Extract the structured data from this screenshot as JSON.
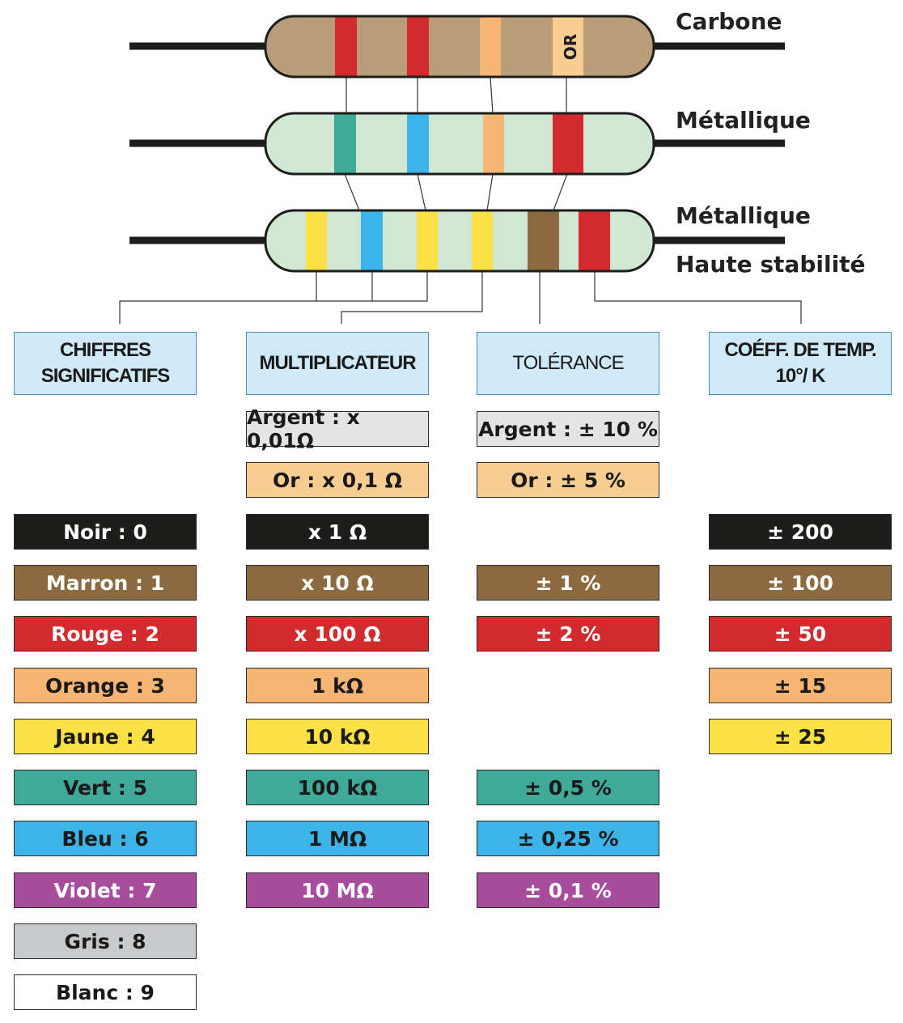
{
  "labels": {
    "carbone": "Carbone",
    "metallique1": "Métallique",
    "metallique2": "Métallique",
    "haute": "Haute stabilité",
    "or_mark": "OR"
  },
  "colors": {
    "noir": "#1d1d1b",
    "marron": "#8c6a3f",
    "rouge": "#d32a2e",
    "orange": "#f5b674",
    "jaune": "#fbe146",
    "vert": "#3fa99a",
    "bleu": "#3cb4e8",
    "violet": "#a84c9d",
    "gris": "#c8c9cb",
    "blanc": "#ffffff",
    "argent": "#e4e4e4",
    "or": "#f8cd92",
    "carbon_body": "#b99c79",
    "metal_body": "#cfe7d3",
    "header_bg": "#cfe9f7"
  },
  "resistors": [
    {
      "name": "carbone",
      "bands": [
        "rouge",
        "rouge",
        "orange",
        "or"
      ]
    },
    {
      "name": "metallique",
      "bands": [
        "vert",
        "bleu",
        "orange",
        "rouge"
      ]
    },
    {
      "name": "metallique-haute-stabilite",
      "bands": [
        "jaune",
        "bleu",
        "jaune",
        "jaune",
        "marron",
        "rouge"
      ]
    }
  ],
  "headers": {
    "chiffres": "CHIFFRES\nSIGNIFICATIFS",
    "multiplicateur": "MULTIPLICATEUR",
    "tolerance": "TOLÉRANCE",
    "coeff": "COÉFF. DE TEMP.\n10°/ K"
  },
  "rows": [
    {
      "row": 0,
      "col": "multiplicateur",
      "color": "argent",
      "text": "Argent : x 0,01Ω",
      "text_color": "#1a1a1a"
    },
    {
      "row": 0,
      "col": "tolerance",
      "color": "argent",
      "text": "Argent : ± 10 %",
      "text_color": "#1a1a1a"
    },
    {
      "row": 1,
      "col": "multiplicateur",
      "color": "or",
      "text": "Or : x 0,1 Ω",
      "text_color": "#1a1a1a"
    },
    {
      "row": 1,
      "col": "tolerance",
      "color": "or",
      "text": "Or : ± 5 %",
      "text_color": "#1a1a1a"
    },
    {
      "row": 2,
      "col": "chiffres",
      "color": "noir",
      "text": "Noir : 0",
      "text_color": "#ffffff"
    },
    {
      "row": 2,
      "col": "multiplicateur",
      "color": "noir",
      "text": "x 1 Ω",
      "text_color": "#ffffff"
    },
    {
      "row": 2,
      "col": "coeff",
      "color": "noir",
      "text": "± 200",
      "text_color": "#ffffff"
    },
    {
      "row": 3,
      "col": "chiffres",
      "color": "marron",
      "text": "Marron : 1",
      "text_color": "#ffffff"
    },
    {
      "row": 3,
      "col": "multiplicateur",
      "color": "marron",
      "text": "x 10 Ω",
      "text_color": "#ffffff"
    },
    {
      "row": 3,
      "col": "tolerance",
      "color": "marron",
      "text": "± 1 %",
      "text_color": "#ffffff"
    },
    {
      "row": 3,
      "col": "coeff",
      "color": "marron",
      "text": "± 100",
      "text_color": "#ffffff"
    },
    {
      "row": 4,
      "col": "chiffres",
      "color": "rouge",
      "text": "Rouge : 2",
      "text_color": "#ffffff"
    },
    {
      "row": 4,
      "col": "multiplicateur",
      "color": "rouge",
      "text": "x 100 Ω",
      "text_color": "#ffffff"
    },
    {
      "row": 4,
      "col": "tolerance",
      "color": "rouge",
      "text": "± 2 %",
      "text_color": "#ffffff"
    },
    {
      "row": 4,
      "col": "coeff",
      "color": "rouge",
      "text": "± 50",
      "text_color": "#ffffff"
    },
    {
      "row": 5,
      "col": "chiffres",
      "color": "orange",
      "text": "Orange : 3",
      "text_color": "#1a1a1a"
    },
    {
      "row": 5,
      "col": "multiplicateur",
      "color": "orange",
      "text": "1 kΩ",
      "text_color": "#1a1a1a"
    },
    {
      "row": 5,
      "col": "coeff",
      "color": "orange",
      "text": "± 15",
      "text_color": "#1a1a1a"
    },
    {
      "row": 6,
      "col": "chiffres",
      "color": "jaune",
      "text": "Jaune : 4",
      "text_color": "#1a1a1a"
    },
    {
      "row": 6,
      "col": "multiplicateur",
      "color": "jaune",
      "text": "10 kΩ",
      "text_color": "#1a1a1a"
    },
    {
      "row": 6,
      "col": "coeff",
      "color": "jaune",
      "text": "± 25",
      "text_color": "#1a1a1a"
    },
    {
      "row": 7,
      "col": "chiffres",
      "color": "vert",
      "text": "Vert : 5",
      "text_color": "#1a1a1a"
    },
    {
      "row": 7,
      "col": "multiplicateur",
      "color": "vert",
      "text": "100 kΩ",
      "text_color": "#1a1a1a"
    },
    {
      "row": 7,
      "col": "tolerance",
      "color": "vert",
      "text": "± 0,5 %",
      "text_color": "#1a1a1a"
    },
    {
      "row": 8,
      "col": "chiffres",
      "color": "bleu",
      "text": "Bleu : 6",
      "text_color": "#1a1a1a"
    },
    {
      "row": 8,
      "col": "multiplicateur",
      "color": "bleu",
      "text": "1 MΩ",
      "text_color": "#1a1a1a"
    },
    {
      "row": 8,
      "col": "tolerance",
      "color": "bleu",
      "text": "± 0,25 %",
      "text_color": "#1a1a1a"
    },
    {
      "row": 9,
      "col": "chiffres",
      "color": "violet",
      "text": "Violet : 7",
      "text_color": "#ffffff"
    },
    {
      "row": 9,
      "col": "multiplicateur",
      "color": "violet",
      "text": "10 MΩ",
      "text_color": "#ffffff"
    },
    {
      "row": 9,
      "col": "tolerance",
      "color": "violet",
      "text": "± 0,1 %",
      "text_color": "#ffffff"
    },
    {
      "row": 10,
      "col": "chiffres",
      "color": "gris",
      "text": "Gris : 8",
      "text_color": "#1a1a1a"
    },
    {
      "row": 11,
      "col": "chiffres",
      "color": "blanc",
      "text": "Blanc : 9",
      "text_color": "#1a1a1a"
    }
  ]
}
